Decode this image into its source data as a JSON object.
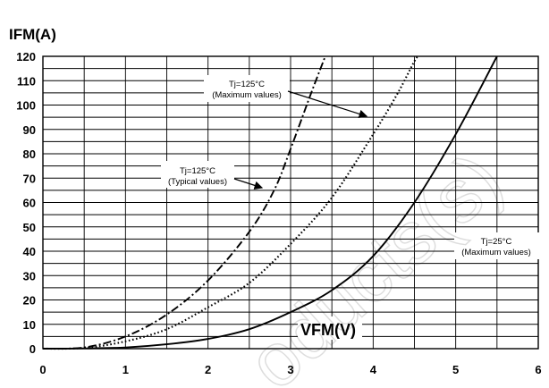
{
  "chart_data": {
    "type": "line",
    "title": "",
    "ylabel": "IFM(A)",
    "xlabel": "VFM(V)",
    "xlim": [
      0,
      6
    ],
    "ylim": [
      0,
      120
    ],
    "x_ticks": [
      "0",
      "1",
      "2",
      "3",
      "4",
      "5",
      "6"
    ],
    "y_ticks": [
      "0",
      "10",
      "20",
      "30",
      "40",
      "50",
      "60",
      "70",
      "80",
      "90",
      "100",
      "110",
      "120"
    ],
    "grid": true,
    "series": [
      {
        "name": "Tj=125°C (Typical values)",
        "style": "dash-dot",
        "points": [
          [
            0,
            0
          ],
          [
            0.5,
            0.5
          ],
          [
            1.0,
            5
          ],
          [
            1.5,
            14
          ],
          [
            2.0,
            28
          ],
          [
            2.5,
            48
          ],
          [
            2.8,
            65
          ],
          [
            3.0,
            82
          ],
          [
            3.25,
            105
          ],
          [
            3.42,
            120
          ]
        ]
      },
      {
        "name": "Tj=125°C (Maximum values)",
        "style": "dotted",
        "points": [
          [
            0,
            0
          ],
          [
            0.5,
            0.3
          ],
          [
            1.0,
            3
          ],
          [
            1.5,
            8
          ],
          [
            2.0,
            17
          ],
          [
            2.5,
            27
          ],
          [
            3.0,
            43
          ],
          [
            3.5,
            62
          ],
          [
            4.0,
            88
          ],
          [
            4.3,
            105
          ],
          [
            4.5,
            118
          ],
          [
            4.55,
            120
          ]
        ]
      },
      {
        "name": "Tj=25°C (Maximum values)",
        "style": "solid",
        "points": [
          [
            0,
            0
          ],
          [
            0.5,
            0.1
          ],
          [
            1.0,
            0.5
          ],
          [
            1.5,
            1.8
          ],
          [
            2.0,
            4
          ],
          [
            2.5,
            8
          ],
          [
            3.0,
            15
          ],
          [
            3.5,
            24
          ],
          [
            4.0,
            38
          ],
          [
            4.5,
            60
          ],
          [
            5.0,
            88
          ],
          [
            5.5,
            120
          ]
        ]
      }
    ],
    "annotations": [
      {
        "line1": "Tj=125°C",
        "line2": "(Maximum values)"
      },
      {
        "line1": "Tj=125°C",
        "line2": "(Typical values)"
      },
      {
        "line1": "Tj=25°C",
        "line2": "(Maximum values)"
      }
    ]
  }
}
